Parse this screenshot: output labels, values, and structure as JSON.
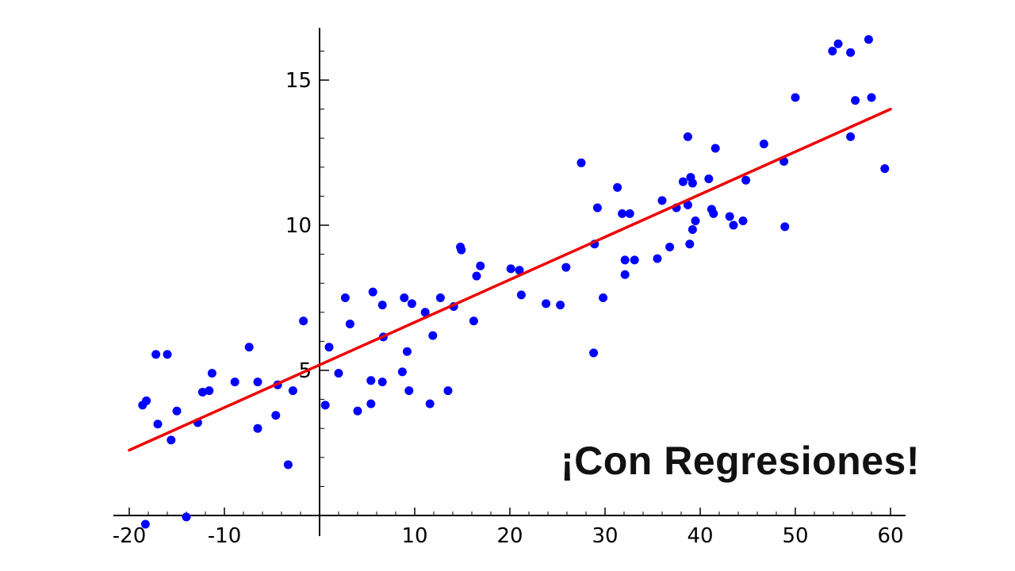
{
  "overlay_text": "¡Con Regresiones!",
  "colors": {
    "points": "#0000ff",
    "fit_line": "#ee0000",
    "axes": "#000000"
  },
  "chart_data": {
    "type": "scatter",
    "title": "",
    "xlabel": "",
    "ylabel": "",
    "xlim": [
      -20,
      60
    ],
    "ylim": [
      0,
      16.8
    ],
    "x_ticks": [
      -20,
      -10,
      10,
      20,
      30,
      40,
      50,
      60
    ],
    "x_tick_labels": [
      "-20",
      "-10",
      "10",
      "20",
      "30",
      "40",
      "50",
      "60"
    ],
    "y_ticks": [
      5,
      10,
      15
    ],
    "y_tick_labels": [
      "5",
      "10",
      "15"
    ],
    "grid": false,
    "series": [
      {
        "points": [
          [
            -18.3,
            -0.3
          ],
          [
            -18.6,
            3.8
          ],
          [
            -18.2,
            3.95
          ],
          [
            -17.0,
            3.15
          ],
          [
            -17.2,
            5.55
          ],
          [
            -16.0,
            5.55
          ],
          [
            -15.6,
            2.6
          ],
          [
            -15.0,
            3.6
          ],
          [
            -14.0,
            -0.05
          ],
          [
            -12.8,
            3.2
          ],
          [
            -12.3,
            4.25
          ],
          [
            -11.6,
            4.3
          ],
          [
            -11.3,
            4.9
          ],
          [
            -8.9,
            4.6
          ],
          [
            -7.4,
            5.8
          ],
          [
            -6.5,
            3.0
          ],
          [
            -6.5,
            4.6
          ],
          [
            -4.6,
            3.45
          ],
          [
            -4.4,
            4.5
          ],
          [
            -3.3,
            1.75
          ],
          [
            -2.8,
            4.3
          ],
          [
            -1.7,
            6.7
          ],
          [
            0.6,
            3.8
          ],
          [
            1.0,
            5.8
          ],
          [
            2.0,
            4.9
          ],
          [
            2.7,
            7.5
          ],
          [
            3.2,
            6.6
          ],
          [
            4.0,
            3.6
          ],
          [
            5.4,
            4.65
          ],
          [
            5.4,
            3.85
          ],
          [
            5.6,
            7.7
          ],
          [
            6.6,
            7.25
          ],
          [
            6.6,
            4.6
          ],
          [
            6.7,
            6.15
          ],
          [
            8.7,
            4.95
          ],
          [
            8.9,
            7.5
          ],
          [
            9.2,
            5.65
          ],
          [
            9.4,
            4.3
          ],
          [
            9.7,
            7.3
          ],
          [
            11.1,
            7.0
          ],
          [
            11.6,
            3.85
          ],
          [
            11.9,
            6.2
          ],
          [
            12.7,
            7.5
          ],
          [
            13.5,
            4.3
          ],
          [
            14.1,
            7.2
          ],
          [
            14.8,
            9.25
          ],
          [
            14.9,
            9.15
          ],
          [
            16.2,
            6.7
          ],
          [
            16.5,
            8.25
          ],
          [
            16.9,
            8.6
          ],
          [
            20.1,
            8.5
          ],
          [
            21.0,
            8.45
          ],
          [
            21.2,
            7.6
          ],
          [
            23.8,
            7.3
          ],
          [
            25.3,
            7.25
          ],
          [
            25.9,
            8.55
          ],
          [
            27.5,
            12.15
          ],
          [
            28.8,
            5.6
          ],
          [
            28.9,
            9.35
          ],
          [
            29.2,
            10.6
          ],
          [
            29.8,
            7.5
          ],
          [
            31.3,
            11.3
          ],
          [
            31.8,
            10.4
          ],
          [
            32.1,
            8.8
          ],
          [
            32.1,
            8.3
          ],
          [
            32.6,
            10.4
          ],
          [
            33.1,
            8.8
          ],
          [
            35.5,
            8.85
          ],
          [
            36.0,
            10.85
          ],
          [
            36.8,
            9.25
          ],
          [
            37.5,
            10.6
          ],
          [
            38.2,
            11.5
          ],
          [
            38.7,
            10.7
          ],
          [
            38.7,
            13.05
          ],
          [
            38.9,
            9.35
          ],
          [
            39.0,
            11.65
          ],
          [
            39.2,
            11.45
          ],
          [
            39.2,
            9.85
          ],
          [
            39.5,
            10.15
          ],
          [
            40.9,
            11.6
          ],
          [
            41.2,
            10.55
          ],
          [
            41.4,
            10.4
          ],
          [
            41.6,
            12.65
          ],
          [
            43.1,
            10.3
          ],
          [
            43.5,
            10.0
          ],
          [
            44.5,
            10.15
          ],
          [
            44.8,
            11.55
          ],
          [
            46.7,
            12.8
          ],
          [
            48.8,
            12.2
          ],
          [
            48.9,
            9.95
          ],
          [
            50.0,
            14.4
          ],
          [
            53.9,
            16.0
          ],
          [
            54.5,
            16.25
          ],
          [
            55.8,
            15.95
          ],
          [
            55.8,
            13.05
          ],
          [
            56.3,
            14.3
          ],
          [
            57.7,
            16.4
          ],
          [
            58.0,
            14.4
          ],
          [
            59.4,
            11.95
          ]
        ]
      }
    ],
    "fit_line": {
      "x": [
        -20,
        60
      ],
      "y": [
        2.25,
        14.0
      ]
    }
  }
}
